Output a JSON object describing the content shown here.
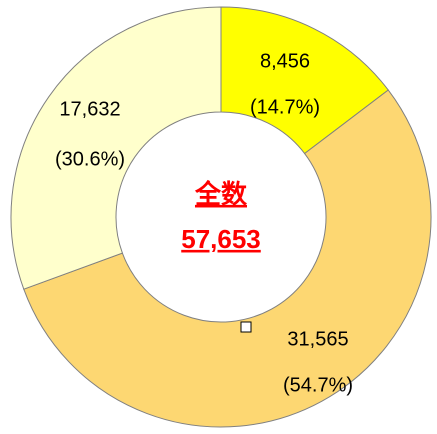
{
  "chart_data": {
    "type": "donut",
    "values": [
      8456,
      31565,
      17632
    ],
    "value_labels": [
      "8,456",
      "31,565",
      "17,632"
    ],
    "percent_labels": [
      "(14.7%)",
      "(54.7%)",
      "(30.6%)"
    ],
    "colors": [
      "#ffff00",
      "#fdd772",
      "#ffffcc"
    ],
    "center_title": "全数",
    "center_total": "57,653"
  }
}
